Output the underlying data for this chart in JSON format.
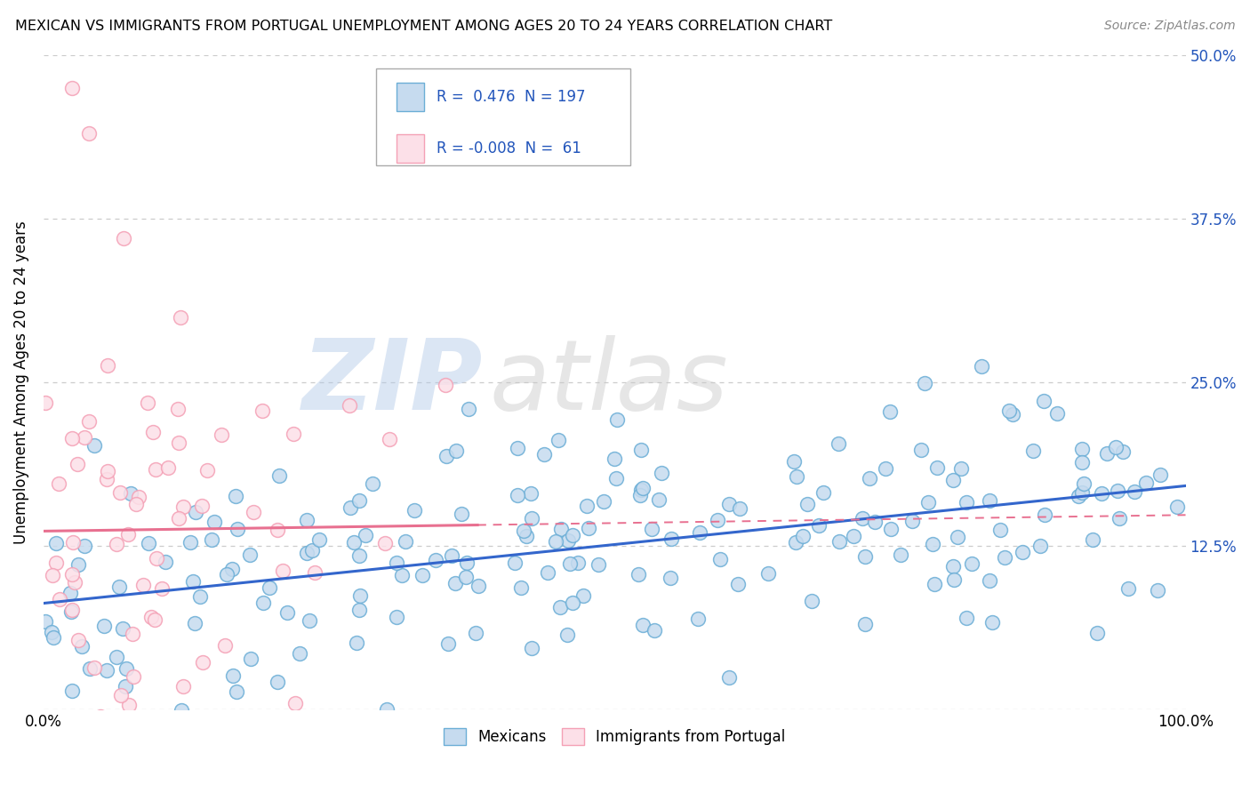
{
  "title": "MEXICAN VS IMMIGRANTS FROM PORTUGAL UNEMPLOYMENT AMONG AGES 20 TO 24 YEARS CORRELATION CHART",
  "source": "Source: ZipAtlas.com",
  "ylabel": "Unemployment Among Ages 20 to 24 years",
  "watermark_zip": "ZIP",
  "watermark_atlas": "atlas",
  "R1": 0.476,
  "N1": 197,
  "R2": -0.008,
  "N2": 61,
  "blue_face": "#c6dbef",
  "blue_edge": "#6baed6",
  "pink_face": "#fce0e8",
  "pink_edge": "#f4a0b5",
  "blue_line": "#3366cc",
  "pink_line": "#e87090",
  "axis_color": "#2255bb",
  "xlim": [
    0,
    1
  ],
  "ylim": [
    0,
    0.5
  ],
  "yticks": [
    0.0,
    0.125,
    0.25,
    0.375,
    0.5
  ],
  "ytick_labels": [
    "",
    "12.5%",
    "25.0%",
    "37.5%",
    "50.0%"
  ],
  "xticks": [
    0.0,
    0.25,
    0.5,
    0.75,
    1.0
  ],
  "xtick_labels": [
    "0.0%",
    "",
    "",
    "",
    "100.0%"
  ],
  "background": "#ffffff",
  "grid_color": "#cccccc"
}
